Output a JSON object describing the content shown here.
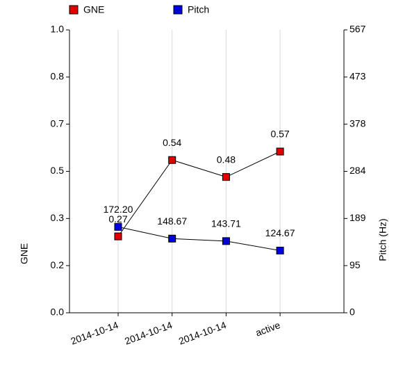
{
  "chart_data": {
    "type": "line",
    "categories": [
      "2014-10-14",
      "2014-10-14",
      "2014-10-14",
      "active"
    ],
    "series": [
      {
        "name": "GNE",
        "color": "#e00000",
        "values": [
          0.27,
          0.54,
          0.48,
          0.57
        ]
      },
      {
        "name": "Pitch",
        "color": "#0000e0",
        "axis": "y2",
        "values": [
          172.2,
          148.67,
          143.71,
          124.67
        ],
        "value_labels": [
          "172.20",
          "148.67",
          "143.71",
          "124.67"
        ]
      }
    ],
    "ylabel": "GNE",
    "y2label": "Pitch (Hz)",
    "ylim": [
      0,
      1
    ],
    "yticks": [
      {
        "value": 0,
        "label": "0.0"
      },
      {
        "value": 0.1667,
        "label": "0.2"
      },
      {
        "value": 0.3333,
        "label": "0.3"
      },
      {
        "value": 0.5,
        "label": "0.5"
      },
      {
        "value": 0.6667,
        "label": "0.7"
      },
      {
        "value": 0.8333,
        "label": "0.8"
      },
      {
        "value": 1,
        "label": "1.0"
      }
    ],
    "y2lim": [
      0,
      567
    ],
    "y2ticks": [
      {
        "value": 0,
        "label": "0"
      },
      {
        "value": 94.5,
        "label": "95"
      },
      {
        "value": 189,
        "label": "189"
      },
      {
        "value": 283.5,
        "label": "284"
      },
      {
        "value": 378,
        "label": "378"
      },
      {
        "value": 472.5,
        "label": "473"
      },
      {
        "value": 567,
        "label": "567"
      }
    ],
    "grid": true
  }
}
